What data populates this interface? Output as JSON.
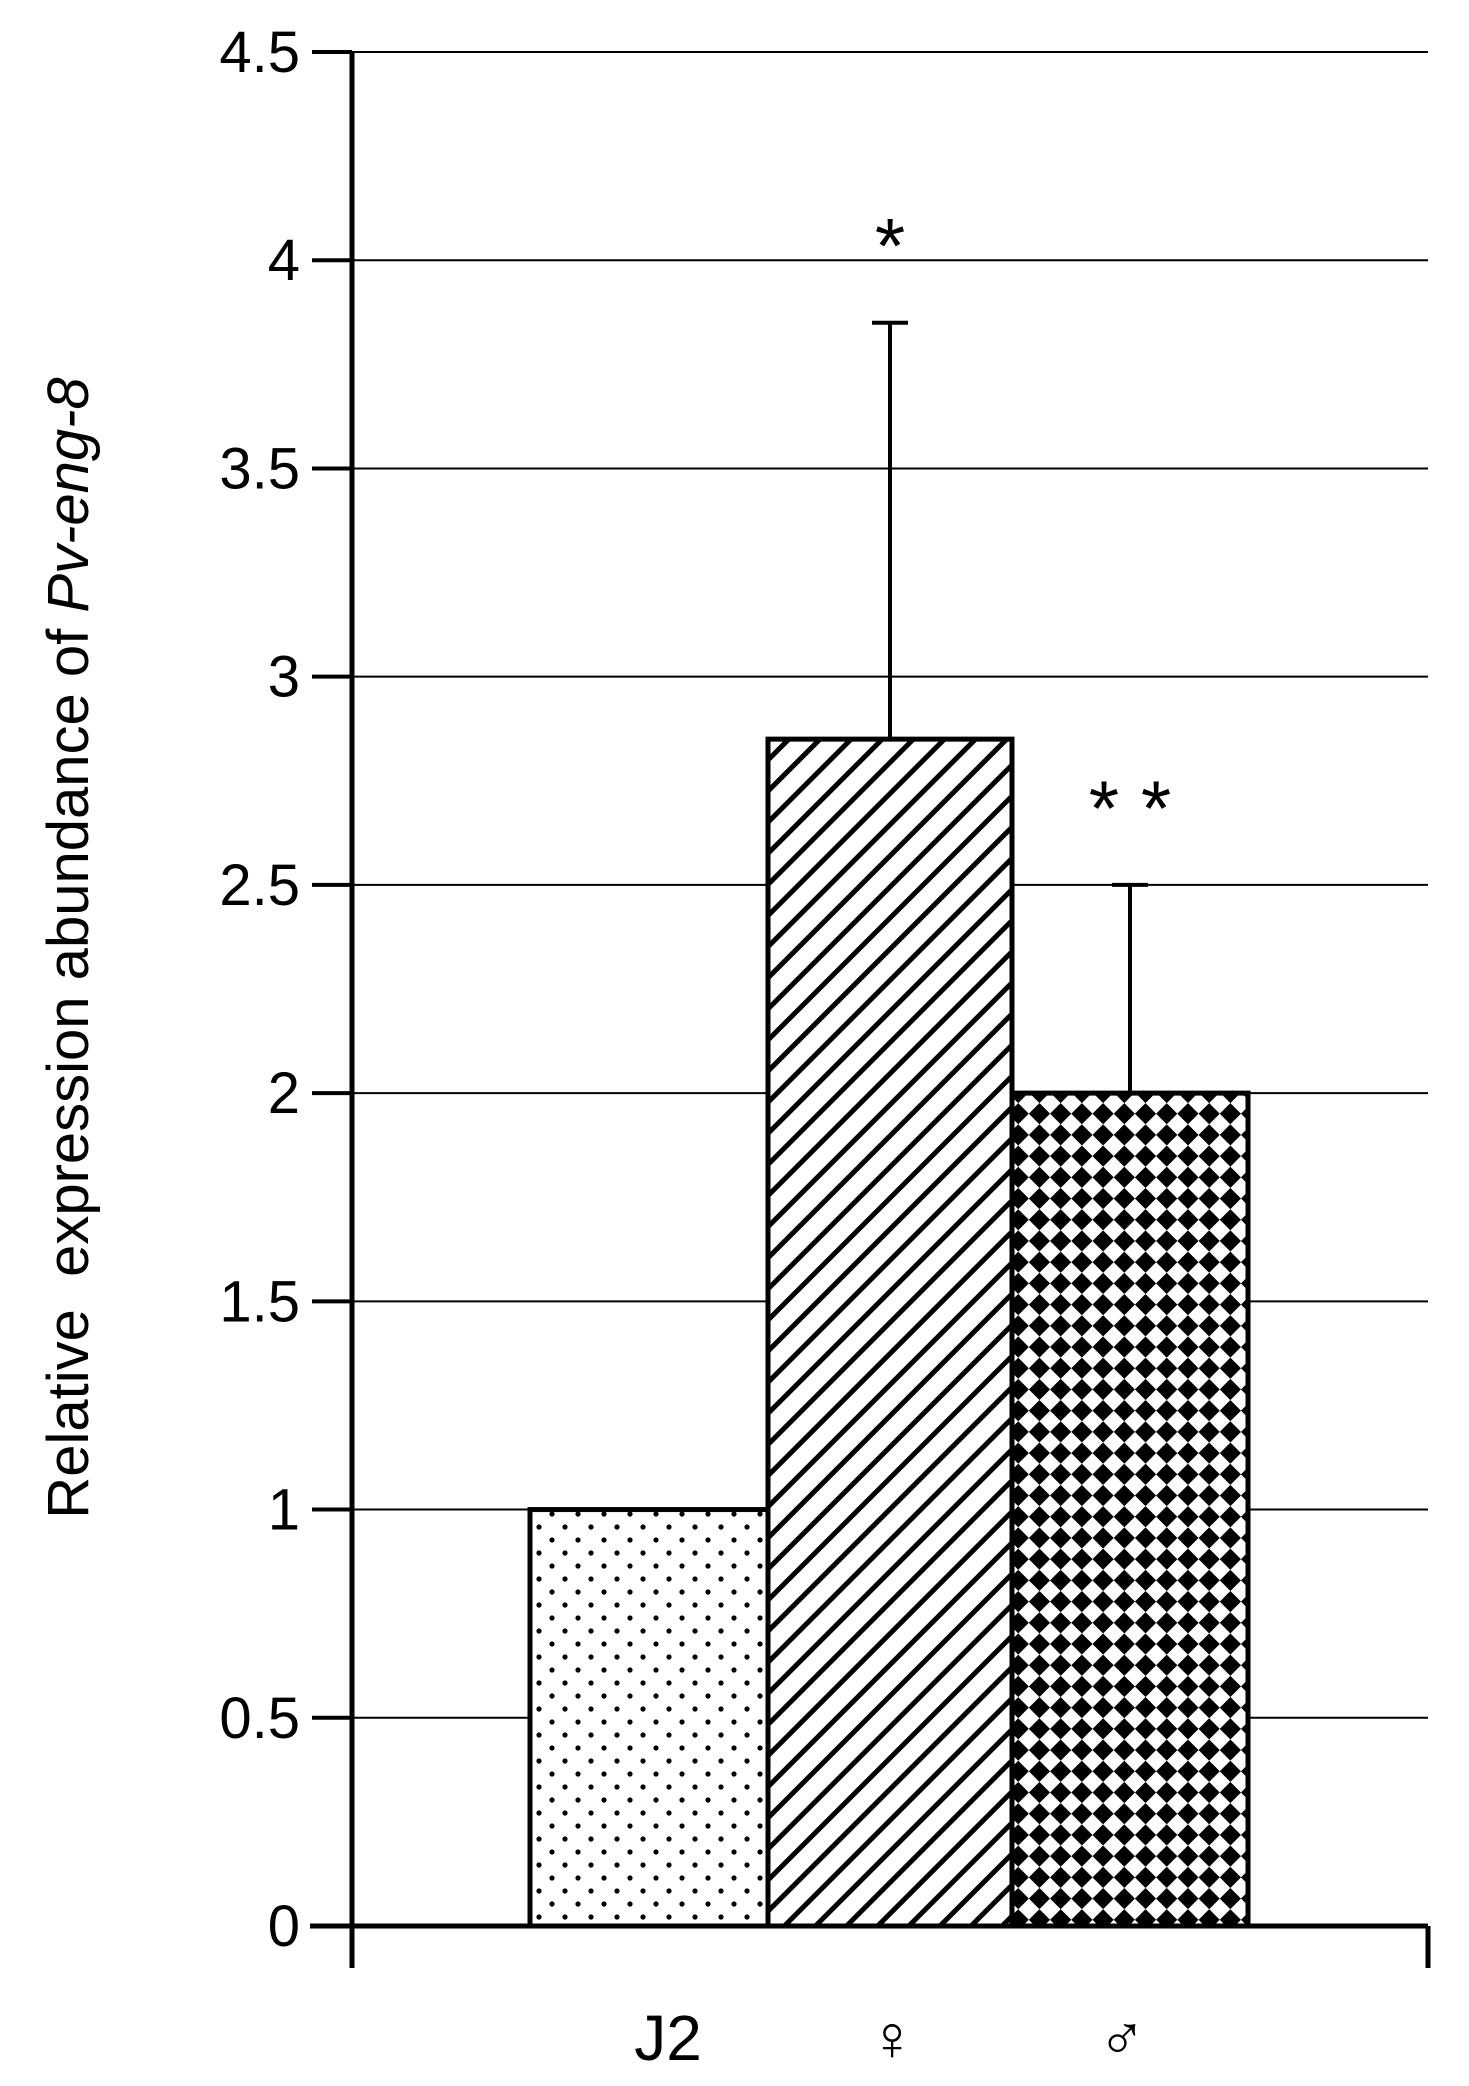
{
  "chart_data": {
    "type": "bar",
    "categories": [
      "J2",
      "♀",
      "♂"
    ],
    "values": [
      1.0,
      2.85,
      2.0
    ],
    "error_upper": [
      0,
      3.85,
      2.5
    ],
    "significance": [
      "",
      "*",
      "* *"
    ],
    "patterns": [
      "dots",
      "diagonal-hatch",
      "checkerboard"
    ],
    "ylabel_plain": "Relative  expression abundance of ",
    "ylabel_italic": "Pv-eng-8",
    "ylim": [
      0,
      4.5
    ],
    "yticks": [
      "0",
      "0.5",
      "1",
      "1.5",
      "2",
      "2.5",
      "3",
      "3.5",
      "4",
      "4.5"
    ],
    "ytick_values": [
      0,
      0.5,
      1,
      1.5,
      2,
      2.5,
      3,
      3.5,
      4,
      4.5
    ],
    "grid": true,
    "colors": {
      "ink": "#000000",
      "background": "#ffffff"
    }
  }
}
